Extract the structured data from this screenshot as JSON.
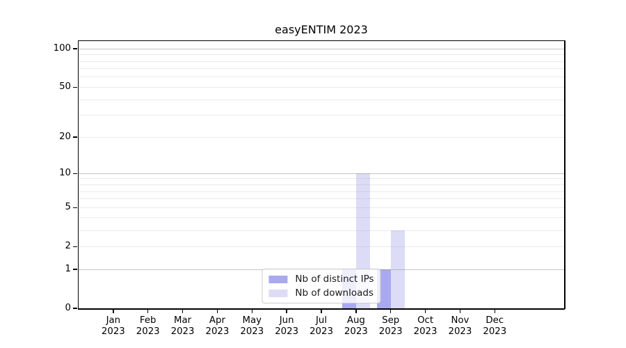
{
  "chart_data": {
    "type": "bar",
    "title": "easyENTIM 2023",
    "xlabel": "",
    "ylabel": "",
    "categories": [
      "Jan 2023",
      "Feb 2023",
      "Mar 2023",
      "Apr 2023",
      "May 2023",
      "Jun 2023",
      "Jul 2023",
      "Aug 2023",
      "Sep 2023",
      "Oct 2023",
      "Nov 2023",
      "Dec 2023"
    ],
    "series": [
      {
        "name": "Nb of distinct IPs",
        "color": "#a9a9f0",
        "values": [
          0,
          0,
          0,
          0,
          0,
          0,
          0,
          1,
          1,
          0,
          0,
          0
        ]
      },
      {
        "name": "Nb of downloads",
        "color": "#dcdcf6",
        "values": [
          0,
          0,
          0,
          0,
          0,
          0,
          0,
          10,
          3,
          0,
          0,
          0
        ]
      }
    ],
    "yscale": "log(value+1)",
    "ylim": [
      0,
      115
    ],
    "y_ticks": [
      0,
      1,
      2,
      5,
      10,
      20,
      50,
      100
    ],
    "y_major_gridlines": [
      1,
      10,
      100
    ],
    "y_minor_gridlines": [
      2,
      3,
      4,
      5,
      6,
      7,
      8,
      9,
      20,
      30,
      40,
      50,
      60,
      70,
      80,
      90
    ],
    "grid": "horizontal",
    "legend_position": "lower center"
  },
  "colors": {
    "background": "#ffffff",
    "spine": "#000000",
    "grid_major": "rgba(140,140,140,0.50)",
    "grid_minor": "rgba(140,140,140,0.18)",
    "legend_border": "#cccccc",
    "legend_background": "rgba(255,255,255,0.8)",
    "bar_distinct_ips": "#a9a9f0",
    "bar_downloads": "#dcdcf6"
  }
}
